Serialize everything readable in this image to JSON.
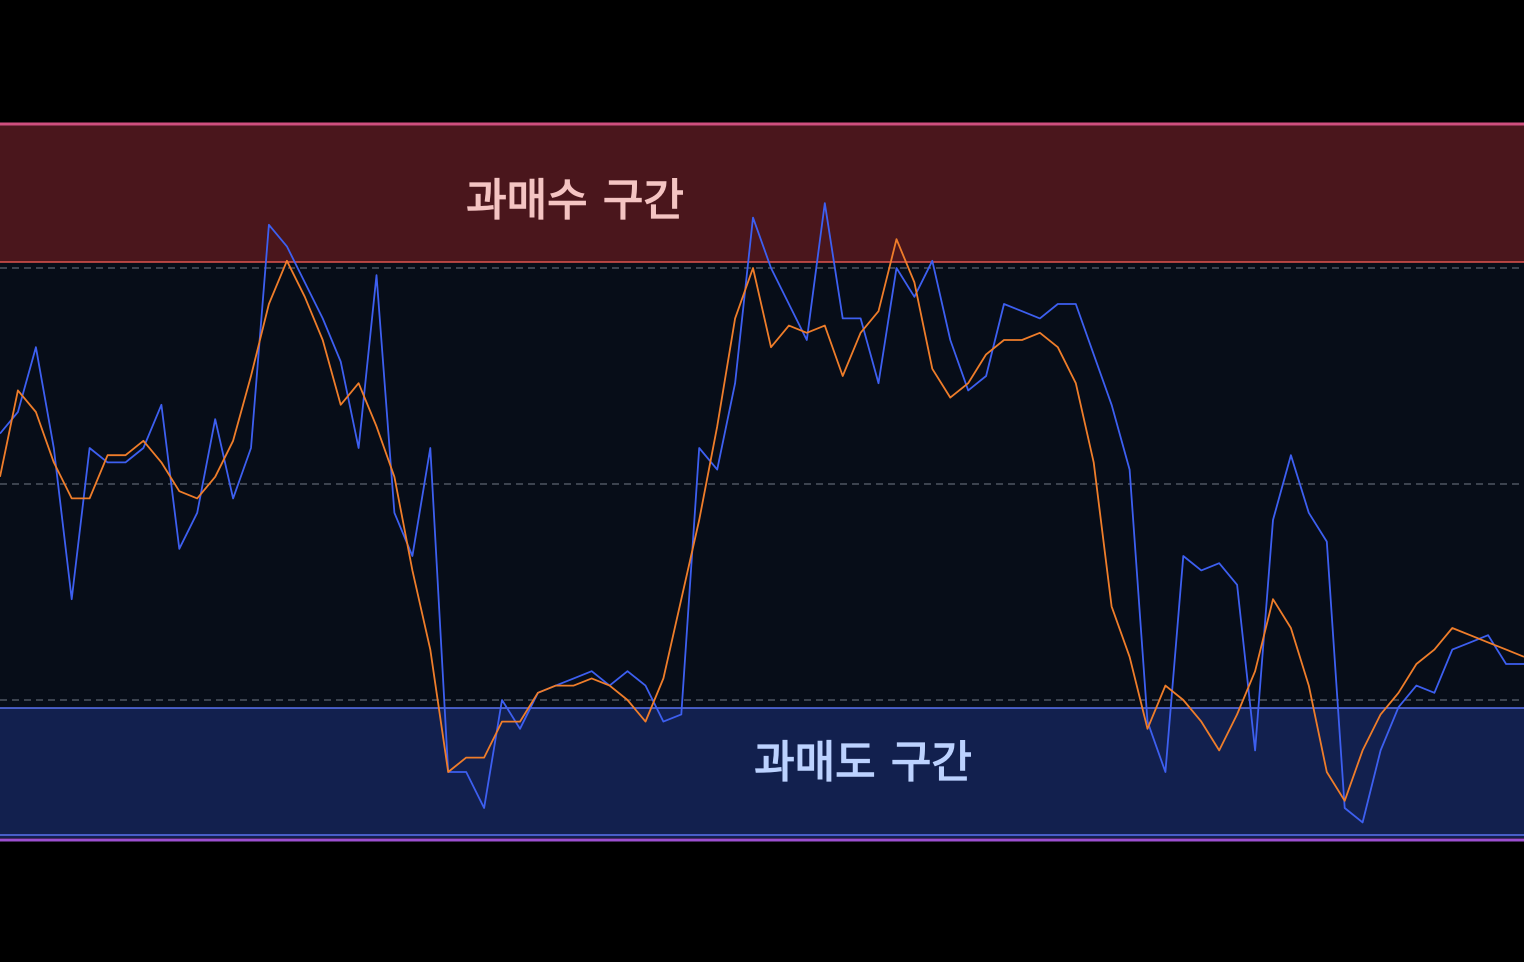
{
  "colors": {
    "background": "#000000",
    "plot_bg": "#070d18",
    "overbought_fill": "#4a161c",
    "overbought_border": "#cf4f7e",
    "overbought_line": "#e0554e",
    "oversold_fill": "#12204e",
    "oversold_border": "#5a73f0",
    "bottom_border": "#9b4fd0",
    "guide_line": "#5c6470",
    "series_fast": "#3d5ff0",
    "series_slow": "#ef7d2a",
    "overbought_text": "#f4c4c2",
    "oversold_text": "#bcd2ff"
  },
  "zones": {
    "overbought_label": "과매수 구간",
    "oversold_label": "과매도 구간"
  },
  "chart_data": {
    "type": "line",
    "ylim": [
      -3.3,
      100
    ],
    "zones": {
      "oversold_max": 20,
      "overbought_min": 80
    },
    "guide_lines": [
      20,
      50,
      80
    ],
    "x": [
      0,
      1,
      2,
      3,
      4,
      5,
      6,
      7,
      8,
      9,
      10,
      11,
      12,
      13,
      14,
      15,
      16,
      17,
      18,
      19,
      20,
      21,
      22,
      23,
      24,
      25,
      26,
      27,
      28,
      29,
      30,
      31,
      32,
      33,
      34,
      35,
      36,
      37,
      38,
      39,
      40,
      41,
      42,
      43,
      44,
      45,
      46,
      47,
      48,
      49,
      50,
      51,
      52,
      53,
      54,
      55,
      56,
      57,
      58,
      59,
      60,
      61,
      62,
      63,
      64,
      65,
      66,
      67,
      68,
      69,
      70,
      71,
      72,
      73,
      74,
      75,
      76,
      77,
      78,
      79,
      80,
      81,
      82,
      83,
      84,
      85
    ],
    "series": [
      {
        "values": [
          57,
          60,
          69,
          55,
          34,
          55,
          53,
          53,
          55,
          61,
          41,
          46,
          59,
          48,
          55,
          86,
          83,
          78,
          73,
          67,
          55,
          79,
          46,
          40,
          55,
          10,
          10,
          5,
          20,
          16,
          21,
          22,
          23,
          24,
          22,
          24,
          22,
          17,
          18,
          55,
          52,
          64,
          87,
          80,
          75,
          70,
          89,
          73,
          73,
          64,
          80,
          76,
          81,
          70,
          63,
          65,
          75,
          74,
          73,
          75,
          75,
          68,
          61,
          52,
          17,
          10,
          40,
          38,
          39,
          36,
          13,
          45,
          54,
          46,
          42,
          5,
          3,
          13,
          19,
          22,
          21,
          27,
          28,
          29,
          25,
          25
        ]
      },
      {
        "values": [
          51,
          63,
          60,
          53,
          48,
          48,
          54,
          54,
          56,
          53,
          49,
          48,
          51,
          56,
          65,
          75,
          81,
          76,
          70,
          61,
          64,
          58,
          51,
          38,
          27,
          10,
          12,
          12,
          17,
          17,
          21,
          22,
          22,
          23,
          22,
          20,
          17,
          23,
          34,
          45,
          58,
          73,
          80,
          69,
          72,
          71,
          72,
          65,
          71,
          74,
          84,
          78,
          66,
          62,
          64,
          68,
          70,
          70,
          71,
          69,
          64,
          53,
          33,
          26,
          16,
          22,
          20,
          17,
          13,
          18,
          24,
          34,
          30,
          22,
          10,
          6,
          13,
          18,
          21,
          25,
          27,
          30,
          29,
          28,
          27,
          26
        ]
      }
    ]
  }
}
